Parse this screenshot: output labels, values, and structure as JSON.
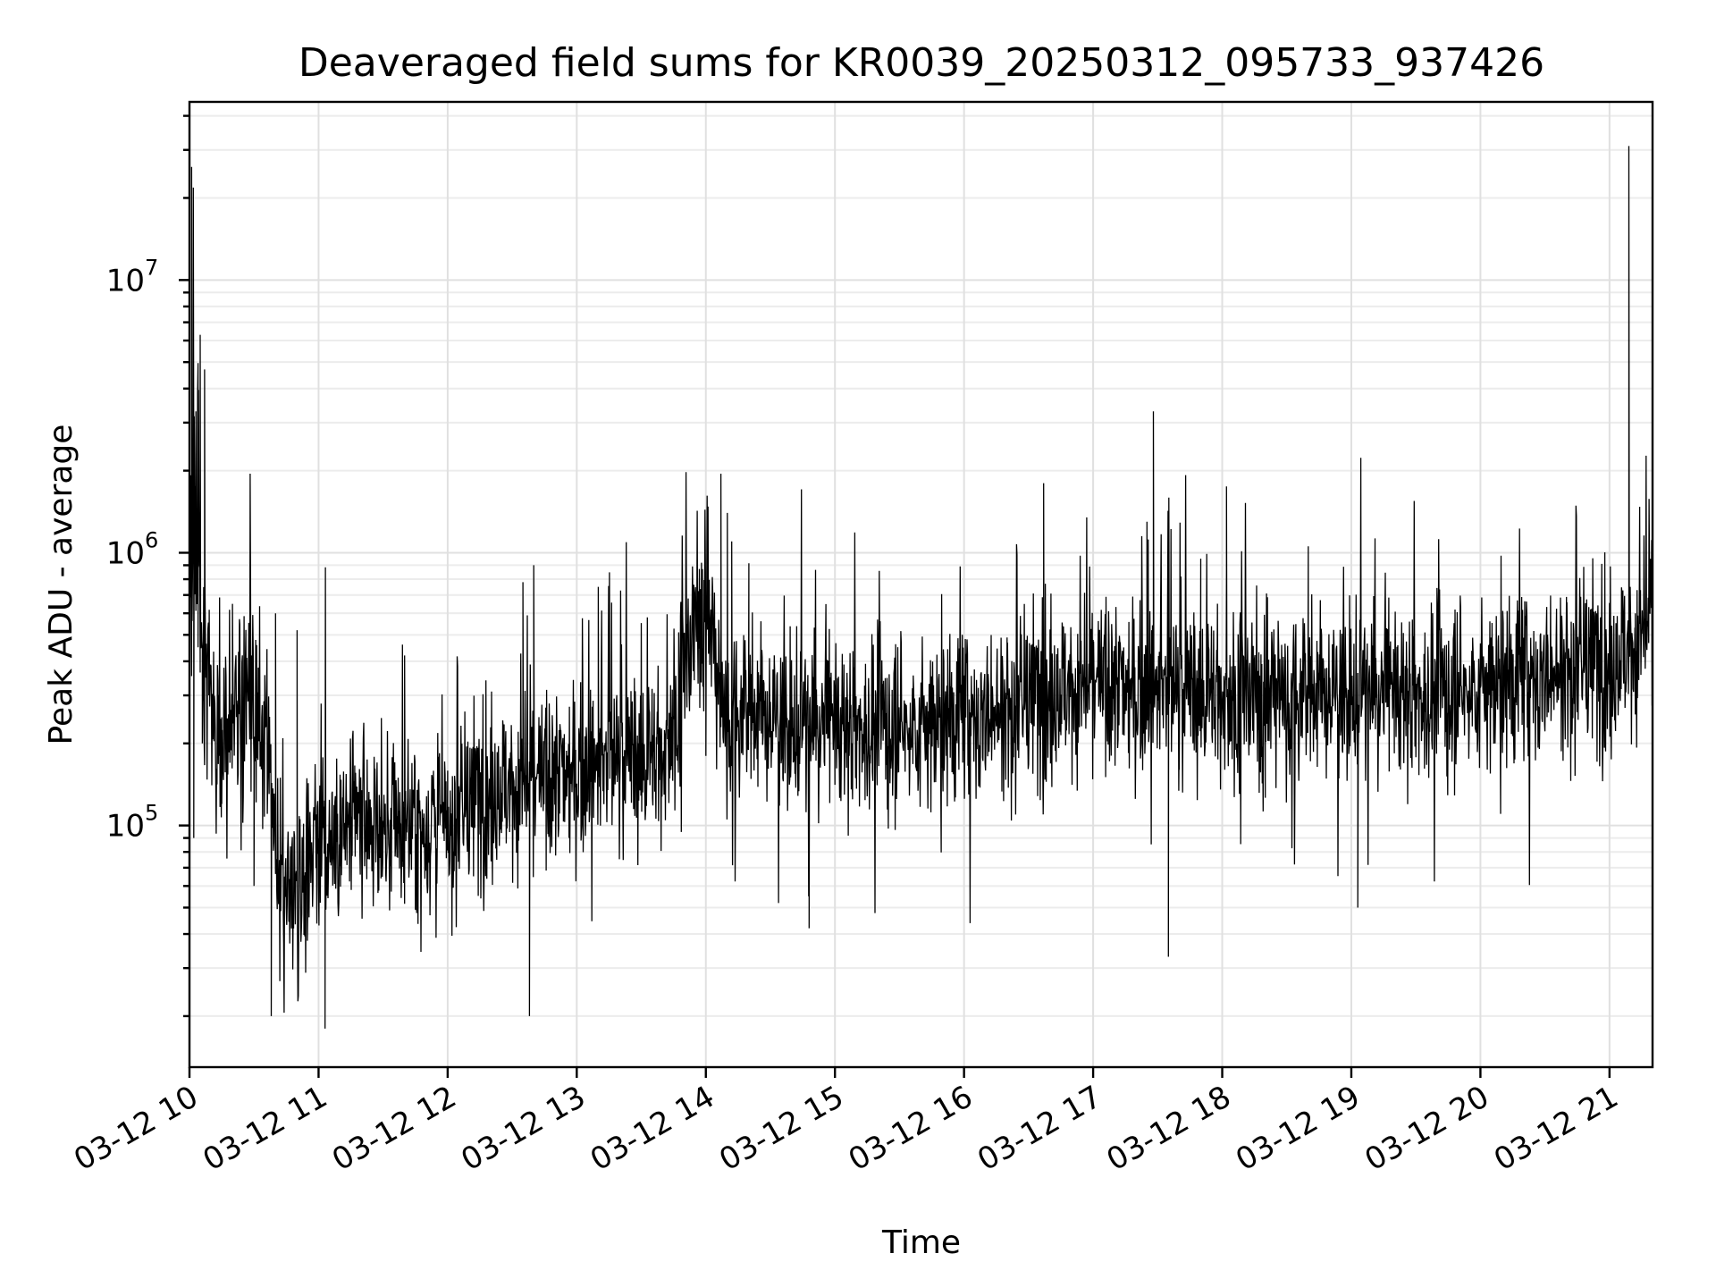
{
  "chart_data": {
    "type": "line",
    "title": "Deaveraged field sums for KR0039_20250312_095733_937426",
    "xlabel": "Time",
    "ylabel": "Peak ADU - average",
    "yscale": "log",
    "ylim": [
      13000,
      45000000
    ],
    "xlim": [
      "2025-03-12 10:00",
      "2025-03-12 21:20"
    ],
    "grid": true,
    "x_ticks": [
      "03-12 10",
      "03-12 11",
      "03-12 12",
      "03-12 13",
      "03-12 14",
      "03-12 15",
      "03-12 16",
      "03-12 17",
      "03-12 18",
      "03-12 19",
      "03-12 20",
      "03-12 21"
    ],
    "y_ticks": [
      {
        "value": 100000,
        "base": "10",
        "exp": "5"
      },
      {
        "value": 1000000,
        "base": "10",
        "exp": "6"
      },
      {
        "value": 10000000,
        "base": "10",
        "exp": "7"
      }
    ],
    "series": [
      {
        "color": "#000000",
        "points": [
          [
            "2025-03-12 10:00",
            300000
          ],
          [
            "2025-03-12 10:01",
            26000000
          ],
          [
            "2025-03-12 10:02",
            90000
          ],
          [
            "2025-03-12 10:03",
            3300000
          ],
          [
            "2025-03-12 10:04",
            450000
          ],
          [
            "2025-03-12 10:05",
            6300000
          ],
          [
            "2025-03-12 10:06",
            200000
          ],
          [
            "2025-03-12 10:07",
            4700000
          ],
          [
            "2025-03-12 10:09",
            300000
          ],
          [
            "2025-03-12 10:15",
            120000
          ],
          [
            "2025-03-12 10:20",
            650000
          ],
          [
            "2025-03-12 10:30",
            60000
          ],
          [
            "2025-03-12 10:38",
            20000
          ],
          [
            "2025-03-12 10:40",
            600000
          ],
          [
            "2025-03-12 10:50",
            520000
          ],
          [
            "2025-03-12 11:00",
            60000
          ],
          [
            "2025-03-12 11:03",
            18000
          ],
          [
            "2025-03-12 11:20",
            90000
          ],
          [
            "2025-03-12 11:40",
            420000
          ],
          [
            "2025-03-12 12:00",
            100000
          ],
          [
            "2025-03-12 12:20",
            140000
          ],
          [
            "2025-03-12 12:35",
            780000
          ],
          [
            "2025-03-12 12:38",
            20000
          ],
          [
            "2025-03-12 12:40",
            900000
          ],
          [
            "2025-03-12 13:00",
            130000
          ],
          [
            "2025-03-12 13:10",
            750000
          ],
          [
            "2025-03-12 13:20",
            140000
          ],
          [
            "2025-03-12 13:40",
            160000
          ],
          [
            "2025-03-12 14:00",
            180000
          ],
          [
            "2025-03-12 14:07",
            1950000
          ],
          [
            "2025-03-12 14:10",
            1400000
          ],
          [
            "2025-03-12 14:12",
            1100000
          ],
          [
            "2025-03-12 14:20",
            260000
          ],
          [
            "2025-03-12 14:40",
            230000
          ],
          [
            "2025-03-12 14:48",
            42000
          ],
          [
            "2025-03-12 15:00",
            200000
          ],
          [
            "2025-03-12 15:20",
            220000
          ],
          [
            "2025-03-12 15:40",
            240000
          ],
          [
            "2025-03-12 16:00",
            230000
          ],
          [
            "2025-03-12 16:20",
            300000
          ],
          [
            "2025-03-12 16:37",
            1800000
          ],
          [
            "2025-03-12 16:40",
            270000
          ],
          [
            "2025-03-12 17:00",
            320000
          ],
          [
            "2025-03-12 17:25",
            1300000
          ],
          [
            "2025-03-12 17:28",
            3300000
          ],
          [
            "2025-03-12 17:35",
            33000
          ],
          [
            "2025-03-12 17:40",
            160000
          ],
          [
            "2025-03-12 17:50",
            300000
          ],
          [
            "2025-03-12 18:02",
            1750000
          ],
          [
            "2025-03-12 18:20",
            320000
          ],
          [
            "2025-03-12 18:40",
            310000
          ],
          [
            "2025-03-12 19:00",
            280000
          ],
          [
            "2025-03-12 19:03",
            50000
          ],
          [
            "2025-03-12 19:20",
            300000
          ],
          [
            "2025-03-12 19:40",
            300000
          ],
          [
            "2025-03-12 20:00",
            320000
          ],
          [
            "2025-03-12 20:20",
            330000
          ],
          [
            "2025-03-12 20:40",
            450000
          ],
          [
            "2025-03-12 21:00",
            380000
          ],
          [
            "2025-03-12 21:09",
            31000000
          ],
          [
            "2025-03-12 21:12",
            600000
          ],
          [
            "2025-03-12 21:20",
            400000
          ]
        ]
      }
    ]
  }
}
